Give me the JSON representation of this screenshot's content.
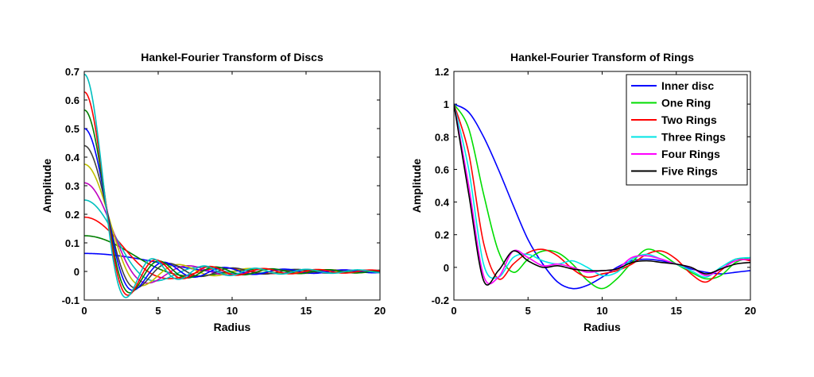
{
  "chart_data": [
    {
      "type": "line",
      "title": "Hankel-Fourier Transform of Discs",
      "xlabel": "Radius",
      "ylabel": "Amplitude",
      "xlim": [
        0,
        20
      ],
      "ylim": [
        -0.1,
        0.7
      ],
      "xticks": [
        0,
        5,
        10,
        15,
        20
      ],
      "yticks": [
        -0.1,
        0,
        0.1,
        0.2,
        0.3,
        0.4,
        0.5,
        0.6,
        0.7
      ],
      "grid": false,
      "legend": "none",
      "series": [
        {
          "color": "#0000ff",
          "peak": 0.063,
          "first_zero": 8.6
        },
        {
          "color": "#007f00",
          "peak": 0.125,
          "first_zero": 5.5
        },
        {
          "color": "#ff0000",
          "peak": 0.19,
          "first_zero": 4.3
        },
        {
          "color": "#00bfbf",
          "peak": 0.25,
          "first_zero": 3.6
        },
        {
          "color": "#bf00bf",
          "peak": 0.31,
          "first_zero": 3.2
        },
        {
          "color": "#bfbf00",
          "peak": 0.375,
          "first_zero": 2.9
        },
        {
          "color": "#3f3f3f",
          "peak": 0.44,
          "first_zero": 2.6
        },
        {
          "color": "#0000ff",
          "peak": 0.5,
          "first_zero": 2.45
        },
        {
          "color": "#007f00",
          "peak": 0.565,
          "first_zero": 2.3
        },
        {
          "color": "#ff0000",
          "peak": 0.628,
          "first_zero": 2.2
        },
        {
          "color": "#00bfbf",
          "peak": 0.69,
          "first_zero": 2.1
        }
      ]
    },
    {
      "type": "line",
      "title": "Hankel-Fourier Transform of Rings",
      "xlabel": "Radius",
      "ylabel": "Amplitude",
      "xlim": [
        0,
        20
      ],
      "ylim": [
        -0.2,
        1.2
      ],
      "xticks": [
        0,
        5,
        10,
        15,
        20
      ],
      "yticks": [
        -0.2,
        0,
        0.2,
        0.4,
        0.6,
        0.8,
        1,
        1.2
      ],
      "grid": false,
      "legend": "top-right",
      "series": [
        {
          "name": "Inner disc",
          "color": "#0000ff",
          "x": [
            0,
            1,
            2,
            3,
            4,
            5,
            6,
            7,
            8,
            9,
            10,
            11,
            12,
            13,
            14,
            15,
            16,
            17,
            18,
            19,
            20
          ],
          "y": [
            1,
            0.95,
            0.8,
            0.6,
            0.38,
            0.17,
            0.02,
            -0.09,
            -0.13,
            -0.11,
            -0.06,
            0.0,
            0.04,
            0.05,
            0.04,
            0.02,
            -0.01,
            -0.03,
            -0.04,
            -0.03,
            -0.02
          ]
        },
        {
          "name": "One Ring",
          "color": "#00dd00",
          "x": [
            0,
            1,
            2,
            3,
            4,
            5,
            6,
            7,
            8,
            9,
            10,
            11,
            12,
            13,
            14,
            15,
            16,
            17,
            18,
            19,
            20
          ],
          "y": [
            1,
            0.85,
            0.45,
            0.1,
            -0.03,
            0.05,
            0.1,
            0.09,
            0.02,
            -0.08,
            -0.13,
            -0.07,
            0.03,
            0.11,
            0.08,
            0.02,
            -0.03,
            -0.07,
            -0.05,
            0.03,
            0.06
          ]
        },
        {
          "name": "Two Rings",
          "color": "#ff0000",
          "x": [
            0,
            1,
            2,
            3,
            4,
            5,
            6,
            7,
            8,
            9,
            10,
            11,
            12,
            13,
            14,
            15,
            16,
            17,
            18,
            19,
            20
          ],
          "y": [
            1,
            0.7,
            0.15,
            -0.07,
            0.02,
            0.09,
            0.11,
            0.07,
            -0.01,
            -0.06,
            -0.04,
            -0.02,
            0.02,
            0.08,
            0.1,
            0.05,
            -0.04,
            -0.09,
            -0.02,
            0.05,
            0.04
          ]
        },
        {
          "name": "Three Rings",
          "color": "#00e5e5",
          "x": [
            0,
            1,
            2,
            3,
            4,
            5,
            6,
            7,
            8,
            9,
            10,
            11,
            12,
            13,
            14,
            15,
            16,
            17,
            18,
            19,
            20
          ],
          "y": [
            1,
            0.6,
            0.02,
            -0.06,
            0.06,
            0.08,
            0.04,
            0.02,
            0.04,
            0.0,
            -0.05,
            -0.03,
            0.05,
            0.08,
            0.05,
            0.02,
            -0.02,
            -0.06,
            0.0,
            0.05,
            0.06
          ]
        },
        {
          "name": "Four Rings",
          "color": "#ff00ff",
          "x": [
            0,
            1,
            2,
            3,
            4,
            5,
            6,
            7,
            8,
            9,
            10,
            11,
            12,
            13,
            14,
            15,
            16,
            17,
            18,
            19,
            20
          ],
          "y": [
            1,
            0.5,
            -0.05,
            -0.06,
            0.1,
            0.06,
            0.01,
            0.02,
            0.0,
            -0.03,
            -0.02,
            -0.01,
            0.06,
            0.07,
            0.05,
            0.02,
            0.0,
            -0.05,
            -0.01,
            0.04,
            0.05
          ]
        },
        {
          "name": "Five Rings",
          "color": "#000000",
          "x": [
            0,
            1,
            2,
            3,
            4,
            5,
            6,
            7,
            8,
            9,
            10,
            11,
            12,
            13,
            14,
            15,
            16,
            17,
            18,
            19,
            20
          ],
          "y": [
            1,
            0.45,
            -0.08,
            -0.02,
            0.1,
            0.04,
            0.0,
            0.01,
            -0.01,
            -0.02,
            -0.02,
            -0.01,
            0.03,
            0.04,
            0.03,
            0.02,
            0.0,
            -0.04,
            -0.01,
            0.02,
            0.03
          ]
        }
      ]
    }
  ]
}
